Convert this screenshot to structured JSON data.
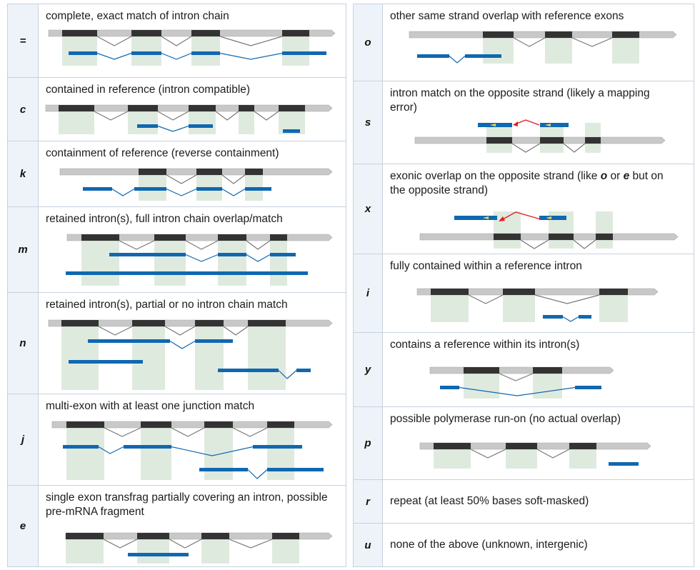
{
  "colors": {
    "ref_line": "#c8c8c8",
    "ref_exon": "#333333",
    "highlight": "#dfeadf",
    "query": "#1068b0",
    "intron_line": "#707070",
    "arrow": "#e02020",
    "strand_marker": "#f2d24a",
    "code_bg": "#eef3f9",
    "border": "#c6d2de"
  },
  "icons": {
    "reference_transcript": "gray-bar-with-dark-exons",
    "query_transcript": "blue-bar-segments",
    "strand_arrow": "red-arrow"
  },
  "left_rows": [
    {
      "code": "=",
      "desc": "complete, exact match of intron chain"
    },
    {
      "code": "c",
      "desc": "contained in reference (intron compatible)"
    },
    {
      "code": "k",
      "desc": "containment of reference (reverse containment)"
    },
    {
      "code": "m",
      "desc": "retained intron(s), full intron chain overlap/match"
    },
    {
      "code": "n",
      "desc": "retained intron(s), partial or no intron chain match"
    },
    {
      "code": "j",
      "desc": "multi-exon with at least one junction match"
    },
    {
      "code": "e",
      "desc": "single exon transfrag partially covering an intron, possible pre-mRNA fragment"
    }
  ],
  "right_rows": [
    {
      "code": "o",
      "desc": "other same strand overlap with reference exons"
    },
    {
      "code": "s",
      "desc": "intron match on the opposite strand (likely a mapping error)"
    },
    {
      "code": "x",
      "desc_parts": [
        "exonic overlap on the opposite strand (like ",
        "o",
        " or ",
        "e",
        " but on the opposite strand)"
      ]
    },
    {
      "code": "i",
      "desc": "fully contained within a reference intron"
    },
    {
      "code": "y",
      "desc": "contains a reference within its intron(s)"
    },
    {
      "code": "p",
      "desc": "possible polymerase run-on (no actual overlap)"
    },
    {
      "code": "r",
      "desc": "repeat (at least 50% bases soft-masked)"
    },
    {
      "code": "u",
      "desc": "none of the above (unknown,  intergenic)"
    }
  ]
}
